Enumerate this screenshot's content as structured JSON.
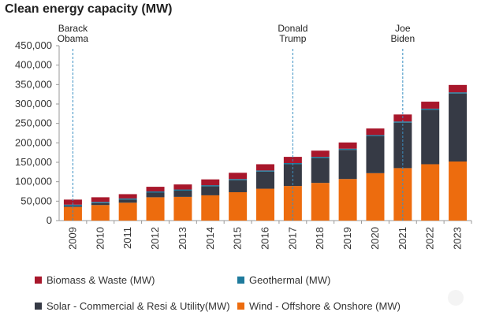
{
  "title": "Clean energy capacity (MW)",
  "chart_data": {
    "type": "stacked-bar",
    "title": "Clean energy capacity (MW)",
    "categories": [
      "2009",
      "2010",
      "2011",
      "2012",
      "2013",
      "2014",
      "2015",
      "2016",
      "2017",
      "2018",
      "2019",
      "2020",
      "2021",
      "2022",
      "2023"
    ],
    "series": [
      {
        "name": "Wind - Offshore & Onshore (MW)",
        "color": "#ED6C0E",
        "values": [
          35000,
          40000,
          46000,
          60000,
          61000,
          65000,
          73000,
          82000,
          89000,
          97000,
          107000,
          122000,
          135000,
          145000,
          152000
        ]
      },
      {
        "name": "Solar - Commercial & Resi & Utility(MW)",
        "color": "#363A45",
        "values": [
          3000,
          5000,
          8000,
          12000,
          16000,
          23000,
          31000,
          44000,
          56000,
          64000,
          75000,
          95000,
          117000,
          140000,
          175000
        ]
      },
      {
        "name": "Geothermal (MW)",
        "color": "#1E7A9C",
        "values": [
          3000,
          3000,
          3000,
          3000,
          3000,
          3000,
          3000,
          3000,
          3000,
          3000,
          3000,
          3000,
          3000,
          3000,
          3000
        ]
      },
      {
        "name": "Biomass & Waste (MW)",
        "color": "#A8172B",
        "values": [
          13000,
          12000,
          11000,
          12000,
          13000,
          15000,
          16000,
          16000,
          16000,
          16000,
          16000,
          17000,
          18000,
          18000,
          19000
        ]
      }
    ],
    "ylim": [
      0,
      450000
    ],
    "yticks": [
      0,
      50000,
      100000,
      150000,
      200000,
      250000,
      300000,
      350000,
      400000,
      450000
    ],
    "ytick_labels": [
      "0",
      "50,000",
      "100,000",
      "150,000",
      "200,000",
      "250,000",
      "300,000",
      "350,000",
      "400,000",
      "450,000"
    ],
    "annotations": [
      {
        "year": "2009",
        "lines": [
          "Barack",
          "Obama"
        ]
      },
      {
        "year": "2017",
        "lines": [
          "Donald",
          "Trump"
        ]
      },
      {
        "year": "2021",
        "lines": [
          "Joe",
          "Biden"
        ]
      }
    ],
    "legend": [
      {
        "label": "Biomass & Waste (MW)",
        "color": "#A8172B"
      },
      {
        "label": "Geothermal (MW)",
        "color": "#1E7A9C"
      },
      {
        "label": "Solar - Commercial & Resi & Utility(MW)",
        "color": "#363A45"
      },
      {
        "label": "Wind - Offshore & Onshore (MW)",
        "color": "#ED6C0E"
      }
    ],
    "annotation_line_color": "#3A8FC2"
  }
}
